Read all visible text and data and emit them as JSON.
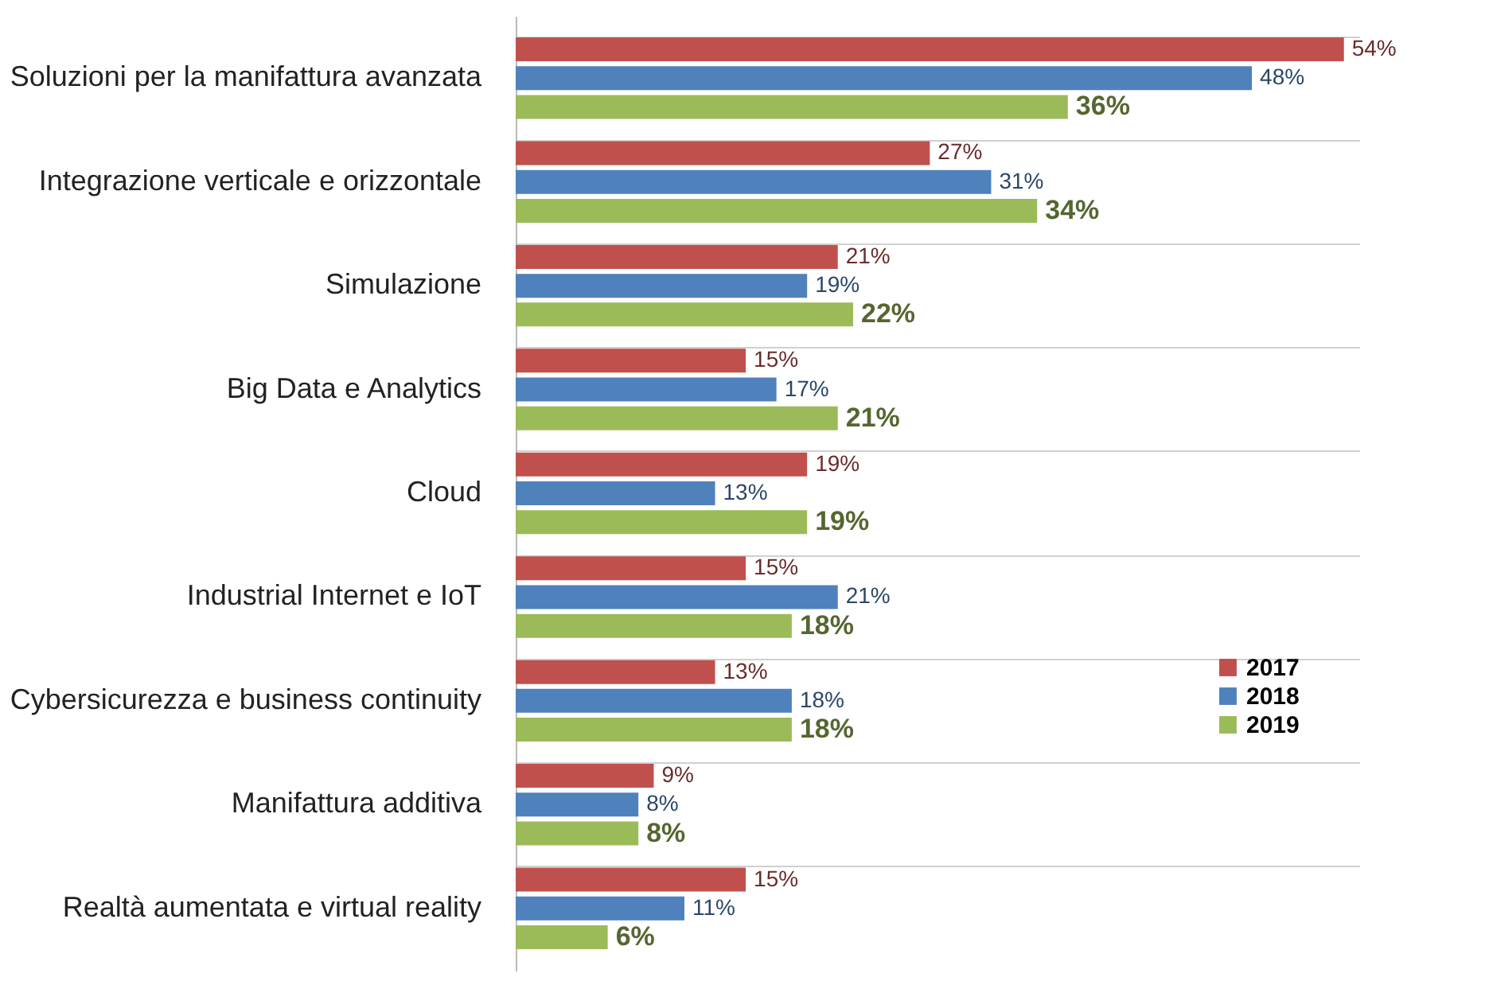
{
  "chart_data": {
    "type": "bar",
    "orientation": "horizontal",
    "grid": "y",
    "legend": "right",
    "categories": [
      "Soluzioni per la manifattura avanzata",
      "Integrazione verticale e orizzontale",
      "Simulazione",
      "Big Data e Analytics",
      "Cloud",
      "Industrial Internet e IoT",
      "Cybersicurezza e business continuity",
      "Manifattura additiva",
      "Realtà aumentata e virtual reality"
    ],
    "series": [
      {
        "name": "2017",
        "color": "#c0504d",
        "values": [
          54,
          27,
          21,
          15,
          19,
          15,
          13,
          9,
          15
        ],
        "value_labels": [
          "54%",
          "27%",
          "21%",
          "15%",
          "19%",
          "15%",
          "13%",
          "9%",
          "15%"
        ]
      },
      {
        "name": "2018",
        "color": "#4f81bd",
        "values": [
          48,
          31,
          19,
          17,
          13,
          21,
          18,
          8,
          11
        ],
        "value_labels": [
          "48%",
          "31%",
          "19%",
          "17%",
          "13%",
          "21%",
          "18%",
          "8%",
          "11%"
        ]
      },
      {
        "name": "2019",
        "color": "#9bbb59",
        "values": [
          36,
          34,
          22,
          21,
          19,
          18,
          18,
          8,
          6
        ],
        "value_labels": [
          "36%",
          "34%",
          "22%",
          "21%",
          "19%",
          "18%",
          "18%",
          "8%",
          "6%"
        ]
      }
    ]
  }
}
